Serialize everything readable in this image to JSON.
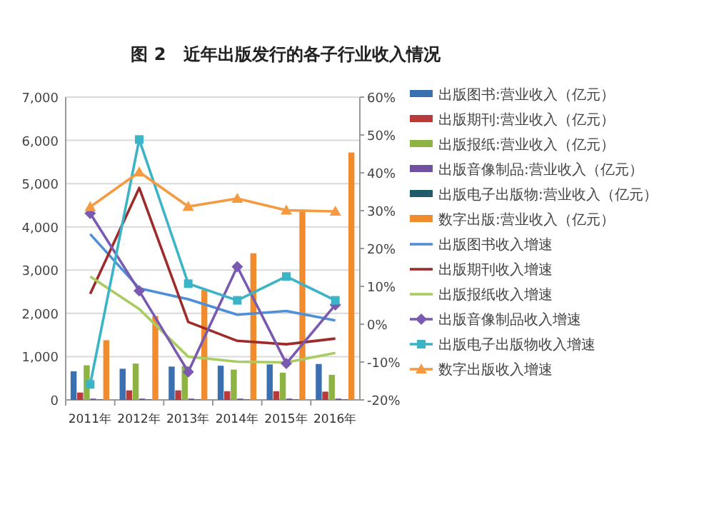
{
  "chart_data": {
    "type": "bar",
    "title": "图 2　近年出版发行的各子行业收入情况",
    "categories": [
      "2011年",
      "2012年",
      "2013年",
      "2014年",
      "2015年",
      "2016年"
    ],
    "series": [
      {
        "name": "出版图书:营业收入（亿元）",
        "color": "#3a6fb0",
        "values": [
          660,
          720,
          770,
          790,
          820,
          830
        ]
      },
      {
        "name": "出版期刊:营业收入（亿元）",
        "color": "#b83a3a",
        "values": [
          170,
          220,
          220,
          200,
          200,
          190
        ]
      },
      {
        "name": "出版报纸:营业收入（亿元）",
        "color": "#8db342",
        "values": [
          800,
          840,
          780,
          700,
          630,
          580
        ]
      },
      {
        "name": "出版音像制品:营业收入（亿元）",
        "color": "#7051a0",
        "values": [
          30,
          30,
          30,
          30,
          30,
          30
        ]
      },
      {
        "name": "出版电子出版物:营业收入（亿元）",
        "color": "#1f5c6a",
        "values": [
          10,
          10,
          10,
          10,
          10,
          10
        ]
      },
      {
        "name": "数字出版:营业收入（亿元）",
        "color": "#f08c2e",
        "values": [
          1380,
          1940,
          2540,
          3390,
          4400,
          5720
        ]
      },
      {
        "name": "出版图书收入增速",
        "type": "line",
        "axis": "y2",
        "marker": "none",
        "color": "#4f8fd8",
        "values": [
          23.8,
          9.5,
          6.6,
          2.5,
          3.5,
          1.0
        ]
      },
      {
        "name": "出版期刊收入增速",
        "type": "line",
        "axis": "y2",
        "marker": "none",
        "color": "#9e2b2b",
        "values": [
          8.0,
          36.0,
          0.6,
          -4.4,
          -5.3,
          -3.8
        ]
      },
      {
        "name": "出版报纸收入增速",
        "type": "line",
        "axis": "y2",
        "marker": "none",
        "color": "#a8cc60",
        "values": [
          12.6,
          4.0,
          -8.6,
          -9.9,
          -10.1,
          -7.6
        ]
      },
      {
        "name": "出版音像制品收入增速",
        "type": "line",
        "axis": "y2",
        "marker": "diamond",
        "color": "#7a5ab0",
        "values": [
          29.3,
          8.8,
          -12.6,
          15.2,
          -10.4,
          5.1
        ]
      },
      {
        "name": "出版电子出版物收入增速",
        "type": "line",
        "axis": "y2",
        "marker": "square",
        "color": "#3cb4c8",
        "values": [
          -15.9,
          48.8,
          10.7,
          6.3,
          12.6,
          6.3
        ]
      },
      {
        "name": "数字出版收入增速",
        "type": "line",
        "axis": "y2",
        "marker": "triangle",
        "color": "#f59a40",
        "values": [
          31.0,
          40.2,
          31.1,
          33.2,
          30.1,
          29.8
        ]
      }
    ],
    "ylim": [
      0,
      7000
    ],
    "yticks": [
      0,
      {
        "value": 1000,
        "label": "1,000"
      },
      {
        "value": 2000,
        "label": "2,000"
      },
      {
        "value": 3000,
        "label": "3,000"
      },
      {
        "value": 4000,
        "label": "4,000"
      },
      {
        "value": 5000,
        "label": "5,000"
      },
      {
        "value": 6000,
        "label": "6,000"
      },
      {
        "value": 7000,
        "label": "7,000"
      }
    ],
    "y2lim": [
      -20,
      60
    ],
    "y2ticks": [
      {
        "value": -20,
        "label": "-20%"
      },
      {
        "value": -10,
        "label": "-10%"
      },
      {
        "value": 0,
        "label": "0%"
      },
      {
        "value": 10,
        "label": "10%"
      },
      {
        "value": 20,
        "label": "20%"
      },
      {
        "value": 30,
        "label": "30%"
      },
      {
        "value": 40,
        "label": "40%"
      },
      {
        "value": 50,
        "label": "50%"
      },
      {
        "value": 60,
        "label": "60%"
      }
    ],
    "grid": "y",
    "legend": "right"
  }
}
